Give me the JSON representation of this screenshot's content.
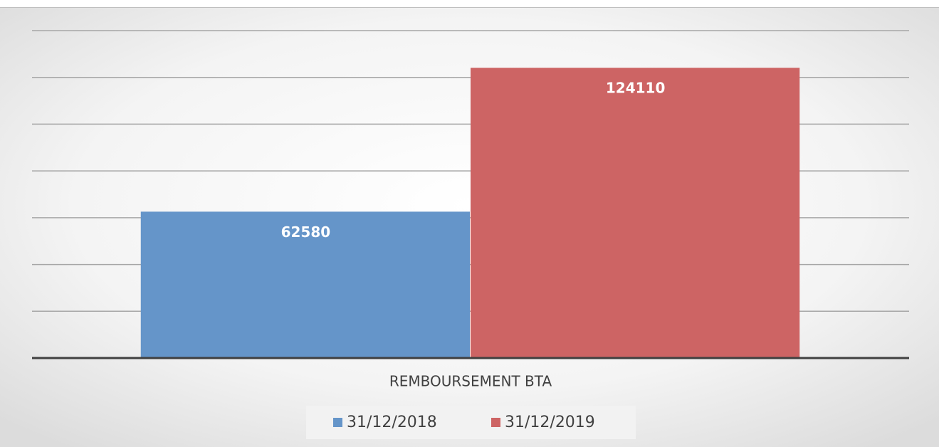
{
  "chart_data": {
    "type": "bar",
    "categories": [
      "REMBOURSEMENT BTA"
    ],
    "series": [
      {
        "name": "31/12/2018",
        "color": "#6595c9",
        "values": [
          62580
        ]
      },
      {
        "name": "31/12/2019",
        "color": "#cd6464",
        "values": [
          124110
        ]
      }
    ],
    "ylim": [
      0,
      140000
    ],
    "yticks": [
      0,
      20000,
      40000,
      60000,
      80000,
      100000,
      120000,
      140000
    ],
    "grid": true,
    "legend": "bottom"
  }
}
